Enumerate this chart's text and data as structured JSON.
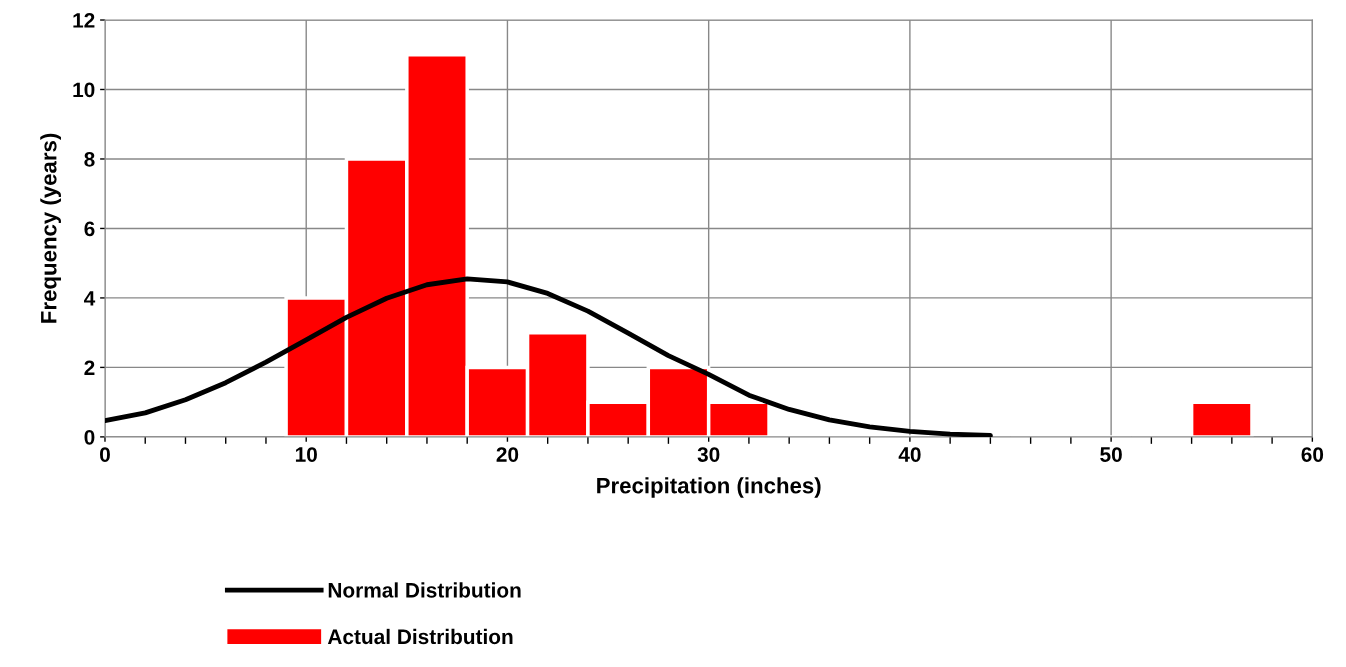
{
  "chart_data": {
    "type": "histogram",
    "xlabel": "Precipitation (inches)",
    "ylabel": "Frequency (years)",
    "bins": [
      9,
      12,
      15,
      18,
      21,
      24,
      27,
      30,
      33,
      36,
      39,
      42,
      45,
      48,
      51,
      54,
      57
    ],
    "series": [
      {
        "name": "Normal Distribution",
        "type": "line",
        "color": "#000000",
        "x": [
          0,
          2,
          4,
          6,
          8,
          10,
          12,
          14,
          16,
          18,
          20,
          22,
          24,
          26,
          28,
          30,
          32,
          34,
          36,
          38,
          40,
          42,
          44
        ],
        "values": [
          0.47,
          0.69,
          1.07,
          1.56,
          2.15,
          2.79,
          3.44,
          3.99,
          4.38,
          4.55,
          4.46,
          4.13,
          3.62,
          2.99,
          2.34,
          1.8,
          1.2,
          0.79,
          0.49,
          0.29,
          0.16,
          0.08,
          0.04
        ]
      },
      {
        "name": "Actual Distribution",
        "color": "#ff0000",
        "values": [
          4,
          8,
          11,
          2,
          3,
          1,
          2,
          1,
          0,
          0,
          0,
          0,
          0,
          0,
          0,
          1
        ]
      }
    ],
    "xlim": [
      0,
      60
    ],
    "ylim": [
      0,
      12
    ],
    "xticks": [
      0,
      {
        "value": 2,
        "label": null
      },
      {
        "value": 4,
        "label": null
      },
      {
        "value": 6,
        "label": null
      },
      {
        "value": 8,
        "label": null
      },
      10,
      {
        "value": 12,
        "label": null
      },
      {
        "value": 14,
        "label": null
      },
      {
        "value": 16,
        "label": null
      },
      {
        "value": 18,
        "label": null
      },
      20,
      {
        "value": 22,
        "label": null
      },
      {
        "value": 24,
        "label": null
      },
      {
        "value": 26,
        "label": null
      },
      {
        "value": 28,
        "label": null
      },
      30,
      {
        "value": 32,
        "label": null
      },
      {
        "value": 34,
        "label": null
      },
      {
        "value": 36,
        "label": null
      },
      {
        "value": 38,
        "label": null
      },
      40,
      {
        "value": 42,
        "label": null
      },
      {
        "value": 44,
        "label": null
      },
      {
        "value": 46,
        "label": null
      },
      {
        "value": 48,
        "label": null
      },
      50,
      {
        "value": 52,
        "label": null
      },
      {
        "value": 54,
        "label": null
      },
      {
        "value": 56,
        "label": null
      },
      {
        "value": 58,
        "label": null
      },
      60
    ],
    "yticks": [
      0,
      2,
      4,
      6,
      8,
      10,
      12
    ],
    "grid": true,
    "legend": "bottom left",
    "line_style": "solid",
    "marker": "none"
  }
}
